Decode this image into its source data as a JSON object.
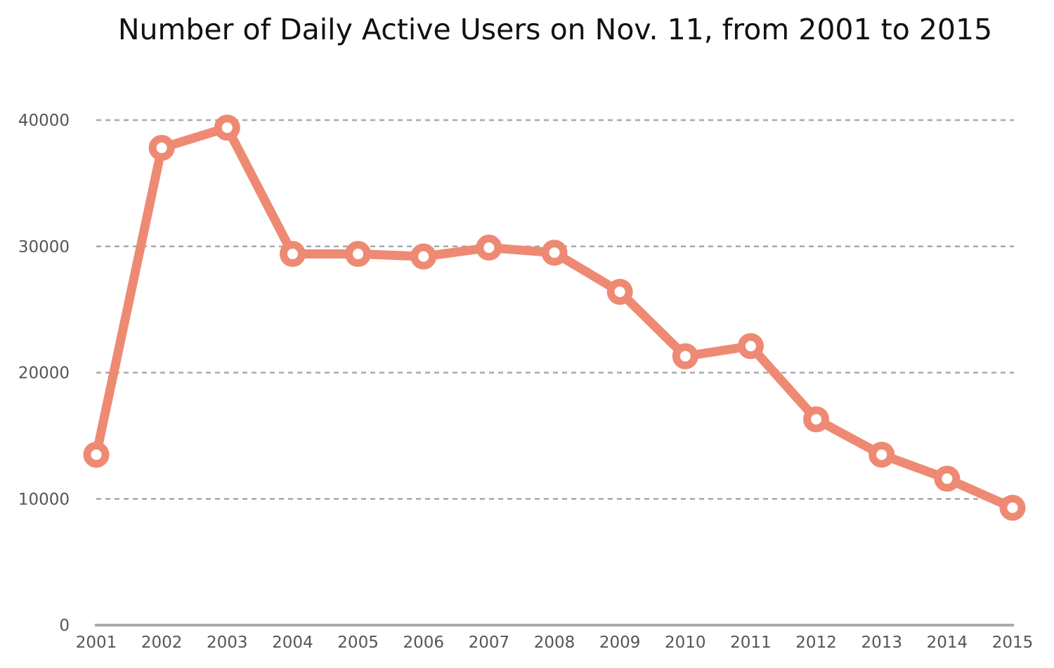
{
  "chart_data": {
    "type": "line",
    "title": "Number of Daily Active Users on Nov. 11, from 2001 to 2015",
    "xlabel": "",
    "ylabel": "",
    "x": [
      "2001",
      "2002",
      "2003",
      "2004",
      "2005",
      "2006",
      "2007",
      "2008",
      "2009",
      "2010",
      "2011",
      "2012",
      "2013",
      "2014",
      "2015"
    ],
    "series": [
      {
        "values": [
          13500,
          37800,
          39400,
          29400,
          29400,
          29200,
          29900,
          29500,
          26400,
          21300,
          22100,
          16300,
          13500,
          11600,
          9300
        ],
        "color": "#ee8a73"
      }
    ],
    "ylim": [
      0,
      40000
    ],
    "yticks": [
      0,
      10000,
      20000,
      30000,
      40000
    ],
    "ytick_labels": [
      "0",
      "10000",
      "20000",
      "30000",
      "40000"
    ],
    "grid": true,
    "legend": "none"
  }
}
